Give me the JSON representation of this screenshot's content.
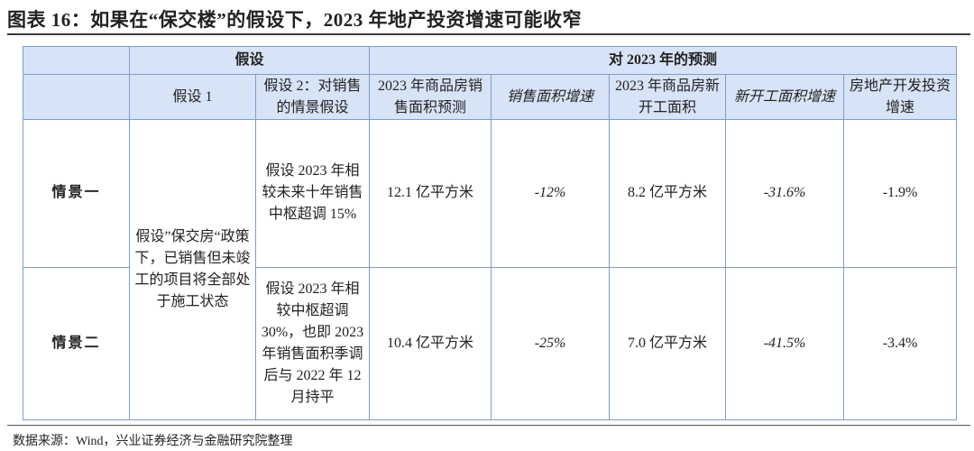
{
  "title": "图表 16：如果在“保交楼”的假设下，2023 年地产投资增速可能收窄",
  "header": {
    "group_assumption": "假设",
    "group_forecast": "对 2023 年的预测",
    "assumption1": "假设 1",
    "assumption2": "假设 2：对销售的情景假设",
    "col_sales_area": "2023 年商品房销售面积预测",
    "col_sales_growth": "销售面积增速",
    "col_new_starts": "2023 年商品房新开工面积",
    "col_new_starts_growth": "新开工面积增速",
    "col_investment_growth": "房地产开发投资增速"
  },
  "shared_assumption1": "假设”保交房“政策下，已销售但未竣工的项目将全部处于施工状态",
  "rows": [
    {
      "scenario": "情景一",
      "assumption2": "假设 2023 年相较未来十年销售中枢超调 15%",
      "sales_area": "12.1 亿平方米",
      "sales_growth": "-12%",
      "new_starts": "8.2 亿平方米",
      "new_starts_growth": "-31.6%",
      "investment_growth": "-1.9%"
    },
    {
      "scenario": "情景二",
      "assumption2": "假设 2023 年相较中枢超调 30%，也即 2023 年销售面积季调后与 2022 年 12 月持平",
      "sales_area": "10.4 亿平方米",
      "sales_growth": "-25%",
      "new_starts": "7.0 亿平方米",
      "new_starts_growth": "-41.5%",
      "investment_growth": "-3.4%"
    }
  ],
  "source": "数据来源：Wind，兴业证券经济与金融研究院整理"
}
